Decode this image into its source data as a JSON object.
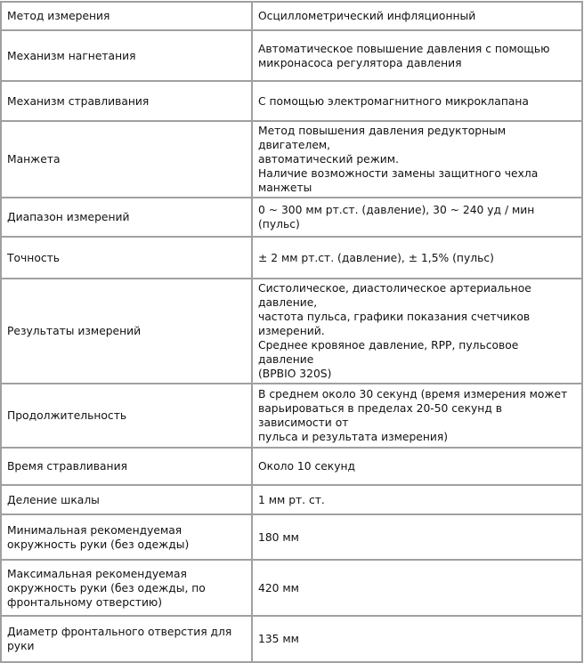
{
  "rows": [
    {
      "label": "Метод измерения",
      "value": [
        "Осциллометрический инфляционный"
      ]
    },
    {
      "label": "Механизм нагнетания",
      "value": [
        "Автоматическое повышение давления с помощью",
        "микронасоса регулятора давления"
      ]
    },
    {
      "label": "Механизм стравливания",
      "value": [
        "С помощью электромагнитного микроклапана"
      ]
    },
    {
      "label": "Манжета",
      "value": [
        "Метод повышения давления редукторным двигателем,",
        "автоматический режим.",
        "Наличие возможности замены защитного чехла манжеты"
      ]
    },
    {
      "label": "Диапазон измерений",
      "value": [
        "0 ~ 300 мм рт.ст. (давление), 30 ~ 240 уд / мин (пульс)"
      ]
    },
    {
      "label": "Точность",
      "value": [
        "± 2 мм рт.ст. (давление), ± 1,5% (пульс)"
      ]
    },
    {
      "label": "Результаты измерений",
      "value": [
        "Систолическое, диастолическое артериальное давление,",
        "частота пульса, графики  показания счетчиков измерений.",
        "Среднее кровяное давление, RPP, пульсовое давление",
        "(BPBIO 320S)"
      ]
    },
    {
      "label": "Продолжительность",
      "value": [
        "В среднем около 30 секунд (время измерения может",
        "варьироваться в пределах 20-50 секунд в зависимости от",
        "пульса и результата измерения)"
      ]
    },
    {
      "label": "Время стравливания",
      "value": [
        "Около 10 секунд"
      ]
    },
    {
      "label": "Деление шкалы",
      "value": [
        "1 мм рт. ст."
      ]
    },
    {
      "label": "Минимальная рекомендуемая окружность руки (без одежды)",
      "value": [
        "180 мм"
      ]
    },
    {
      "label": "Максимальная рекомендуемая окружность руки (без одежды, по фронтальному отверстию)",
      "value": [
        "420 мм"
      ]
    },
    {
      "label": "Диаметр фронтального отверстия для руки",
      "value": [
        "135 мм"
      ]
    }
  ]
}
